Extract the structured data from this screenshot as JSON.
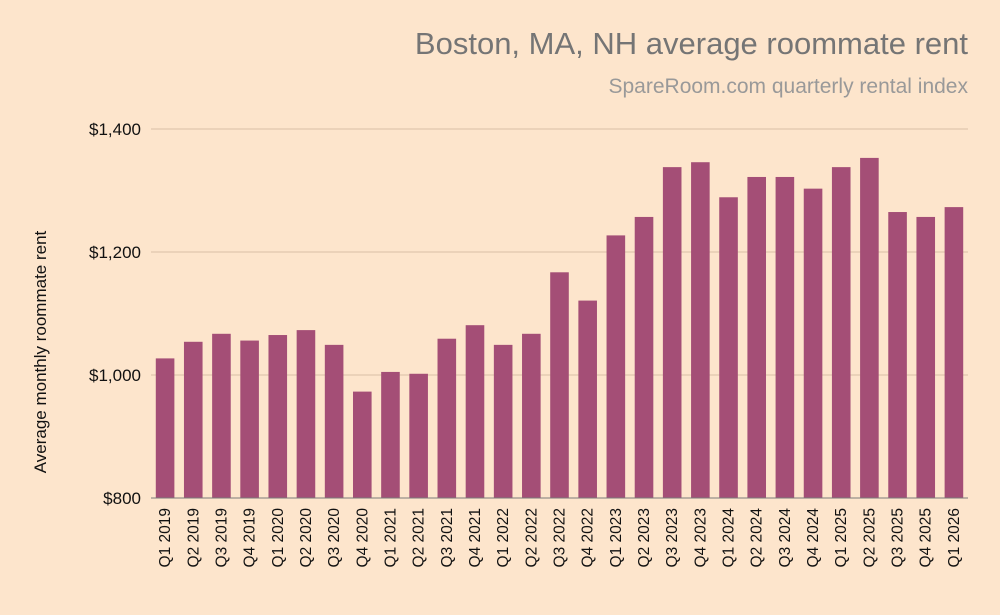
{
  "chart_data": {
    "type": "bar",
    "title": "Boston, MA, NH average roommate rent",
    "subtitle": "SpareRoom.com quarterly rental index",
    "xlabel": "",
    "ylabel": "Average monthly roommate rent",
    "ylim": [
      800,
      1400
    ],
    "yticks": [
      800,
      1000,
      1200,
      1400
    ],
    "ytick_labels": [
      "$800",
      "$1,000",
      "$1,200",
      "$1,400"
    ],
    "grid": true,
    "legend": "none",
    "bar_color": "#a44e76",
    "categories": [
      "Q1 2019",
      "Q2 2019",
      "Q3 2019",
      "Q4 2019",
      "Q1 2020",
      "Q2 2020",
      "Q3 2020",
      "Q4 2020",
      "Q1 2021",
      "Q2 2021",
      "Q3 2021",
      "Q4 2021",
      "Q1 2022",
      "Q2 2022",
      "Q3 2022",
      "Q4 2022",
      "Q1 2023",
      "Q2 2023",
      "Q3 2023",
      "Q4 2023",
      "Q1 2024",
      "Q2 2024",
      "Q3 2024",
      "Q4 2024",
      "Q1 2025",
      "Q2 2025",
      "Q3 2025",
      "Q4 2025",
      "Q1 2026"
    ],
    "values": [
      1027,
      1054,
      1067,
      1056,
      1065,
      1073,
      1049,
      973,
      1005,
      1002,
      1059,
      1081,
      1049,
      1067,
      1167,
      1121,
      1227,
      1257,
      1338,
      1346,
      1289,
      1322,
      1322,
      1303,
      1338,
      1353,
      1265,
      1257,
      1273
    ]
  }
}
